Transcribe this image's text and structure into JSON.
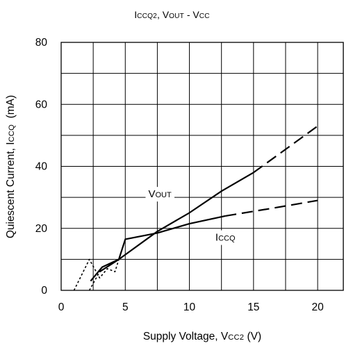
{
  "chart_data": {
    "type": "line",
    "title": "ICCQ2, VOUT - VCC",
    "xlabel": "Supply Voltage, VCC2 (V)",
    "ylabel": "Quiescent Current, ICCQ  (mA)",
    "xlim": [
      0,
      22
    ],
    "ylim": [
      0,
      80
    ],
    "x_ticks": [
      "0",
      "5",
      "10",
      "15",
      "20"
    ],
    "y_ticks": [
      "0",
      "20",
      "40",
      "60",
      "80"
    ],
    "grid": true,
    "line_annotations": [
      {
        "text": "VOUT",
        "x": 7.7,
        "y": 30
      },
      {
        "text": "ICCQ",
        "x": 12.8,
        "y": 16
      }
    ],
    "series": [
      {
        "name": "VOUT",
        "style": "solid",
        "color": "#000000",
        "values": [
          [
            3.0,
            6
          ],
          [
            4.5,
            10
          ],
          [
            7.5,
            19
          ],
          [
            10,
            25
          ],
          [
            12.5,
            32
          ],
          [
            15,
            38
          ]
        ]
      },
      {
        "name": "VOUT",
        "style": "dashed",
        "color": "#000000",
        "values": [
          [
            15,
            38
          ],
          [
            20,
            53
          ]
        ]
      },
      {
        "name": "ICCQ",
        "style": "solid",
        "color": "#000000",
        "values": [
          [
            2.3,
            3
          ],
          [
            3.2,
            7.5
          ],
          [
            4.5,
            10
          ],
          [
            5,
            16.5
          ],
          [
            7.5,
            18.5
          ],
          [
            10,
            21.5
          ],
          [
            12.8,
            24
          ]
        ]
      },
      {
        "name": "ICCQ",
        "style": "dashed",
        "color": "#000000",
        "values": [
          [
            12.8,
            24
          ],
          [
            16.5,
            26.5
          ],
          [
            20,
            29
          ]
        ]
      },
      {
        "name": "ICCQ",
        "style": "dotted",
        "color": "#000000",
        "values": [
          [
            1,
            0
          ],
          [
            2.2,
            10
          ],
          [
            3,
            4
          ],
          [
            3.6,
            7
          ],
          [
            4.2,
            6
          ],
          [
            4.5,
            10
          ]
        ]
      },
      {
        "name": "VOUT",
        "style": "dotted",
        "color": "#000000",
        "values": [
          [
            2.2,
            0
          ],
          [
            3.0,
            6
          ]
        ]
      }
    ]
  }
}
